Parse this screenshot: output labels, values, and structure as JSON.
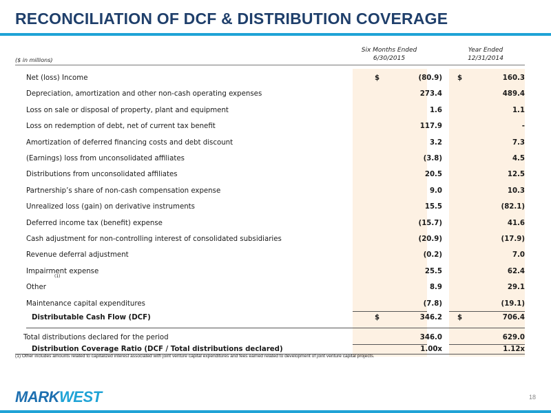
{
  "title": "RECONCILIATION OF DCF & DISTRIBUTION COVERAGE",
  "header": {
    "units": "($ in millions)",
    "col1_line1": "Six Months Ended",
    "col1_line2": "6/30/2015",
    "col2_line1": "Year Ended",
    "col2_line2": "12/31/2014"
  },
  "rows": [
    {
      "label": "Net (loss) Income",
      "v1": "(80.9)",
      "v2": "160.3",
      "dollar": "$"
    },
    {
      "label": "Depreciation, amortization and other non-cash operating expenses",
      "v1": "273.4",
      "v2": "489.4"
    },
    {
      "label": "Loss on sale or disposal of property, plant and equipment",
      "v1": "1.6",
      "v2": "1.1"
    },
    {
      "label": "Loss on redemption of debt, net of current tax benefit",
      "v1": "117.9",
      "v2": "-"
    },
    {
      "label": "Amortization of deferred financing costs and debt discount",
      "v1": "3.2",
      "v2": "7.3"
    },
    {
      "label": "(Earnings) loss from unconsolidated affiliates",
      "v1": "(3.8)",
      "v2": "4.5"
    },
    {
      "label": "Distributions from unconsolidated affiliates",
      "v1": "20.5",
      "v2": "12.5"
    },
    {
      "label": "Partnership’s share of non-cash compensation expense",
      "v1": "9.0",
      "v2": "10.3"
    },
    {
      "label": "Unrealized loss (gain) on derivative instruments",
      "v1": "15.5",
      "v2": "(82.1)"
    },
    {
      "label": "Deferred income tax (benefit) expense",
      "v1": "(15.7)",
      "v2": "41.6"
    },
    {
      "label": "Cash adjustment for non-controlling interest of consolidated subsidiaries",
      "v1": "(20.9)",
      "v2": "(17.9)"
    },
    {
      "label": "Revenue deferral adjustment",
      "v1": "(0.2)",
      "v2": "7.0"
    },
    {
      "label": "Impairment expense",
      "v1": "25.5",
      "v2": "62.4"
    },
    {
      "label": "Other",
      "sup": "(1)",
      "v1": "8.9",
      "v2": "29.1"
    },
    {
      "label": "Maintenance capital expenditures",
      "v1": "(7.8)",
      "v2": "(19.1)"
    }
  ],
  "dcf": {
    "label": "Distributable Cash Flow (DCF)",
    "dollar": "$",
    "v1": "346.2",
    "v2": "706.4"
  },
  "distributions": {
    "label": "Total distributions declared for the period",
    "v1": "346.0",
    "v2": "629.0"
  },
  "coverage": {
    "label": "Distribution Coverage Ratio (DCF / Total distributions declared)",
    "v1": "1.00x",
    "v2": "1.12x"
  },
  "footnote": "(1)     Other includes amounts related to capitalized interest associated with joint venture capital expenditures and fees earned related to development of joint venture capital projects.",
  "logo": {
    "part1": "MARK",
    "part2": "WEST"
  },
  "page_number": "18",
  "colors": {
    "title": "#1f3f6b",
    "accent": "#1fa3d6",
    "shade": "#fdf1e3"
  }
}
